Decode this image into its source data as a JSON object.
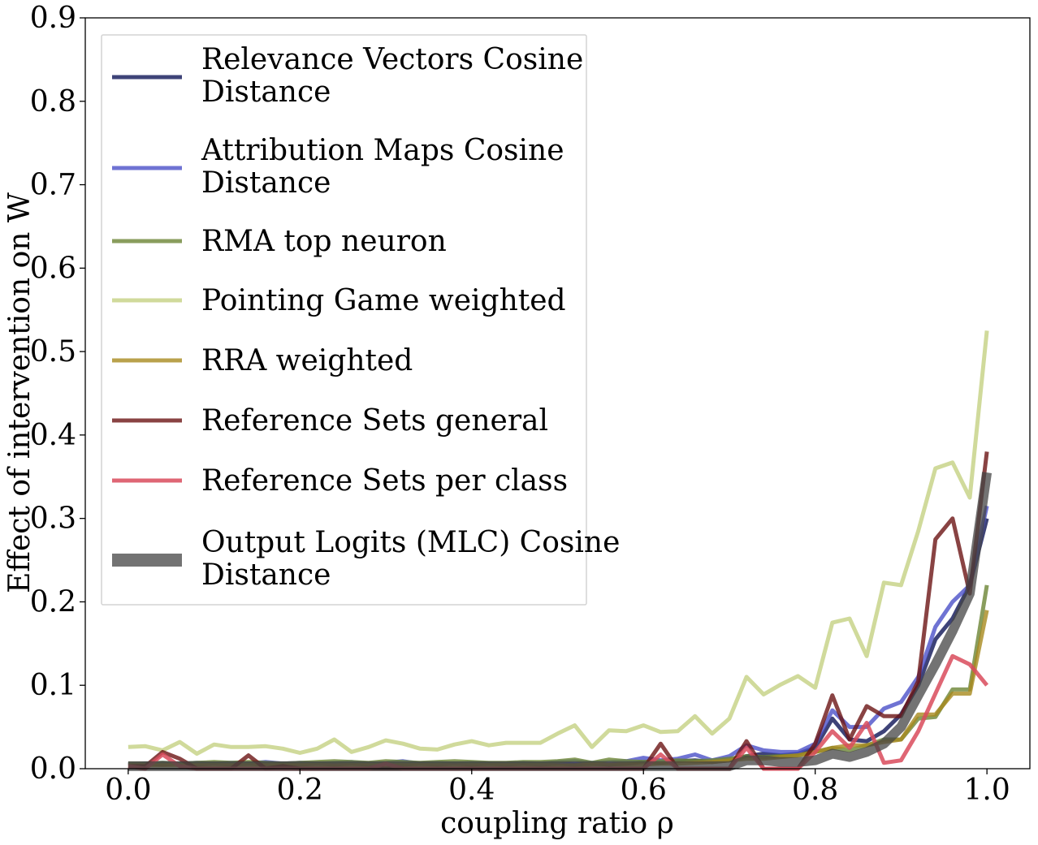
{
  "chart_data": {
    "type": "line",
    "title": "",
    "xlabel": "coupling ratio ρ",
    "ylabel": "Effect of intervention on W",
    "xlim": [
      -0.05,
      1.05
    ],
    "ylim": [
      0.0,
      0.9
    ],
    "xticks": [
      0.0,
      0.2,
      0.4,
      0.6,
      0.8,
      1.0
    ],
    "xtick_labels": [
      "0.0",
      "0.2",
      "0.4",
      "0.6",
      "0.8",
      "1.0"
    ],
    "yticks": [
      0.0,
      0.1,
      0.2,
      0.3,
      0.4,
      0.5,
      0.6,
      0.7,
      0.8,
      0.9
    ],
    "ytick_labels": [
      "0.0",
      "0.1",
      "0.2",
      "0.3",
      "0.4",
      "0.5",
      "0.6",
      "0.7",
      "0.8",
      "0.9"
    ],
    "grid": false,
    "legend_position": "upper-left",
    "x": [
      0.0,
      0.02,
      0.04,
      0.06,
      0.08,
      0.1,
      0.12,
      0.14,
      0.16,
      0.18,
      0.2,
      0.22,
      0.24,
      0.26,
      0.28,
      0.3,
      0.32,
      0.34,
      0.36,
      0.38,
      0.4,
      0.42,
      0.44,
      0.46,
      0.48,
      0.5,
      0.52,
      0.54,
      0.56,
      0.58,
      0.6,
      0.62,
      0.64,
      0.66,
      0.68,
      0.7,
      0.72,
      0.74,
      0.76,
      0.78,
      0.8,
      0.82,
      0.84,
      0.86,
      0.88,
      0.9,
      0.92,
      0.94,
      0.96,
      0.98,
      1.0
    ],
    "series": [
      {
        "name": "Relevance Vectors Cosine Distance",
        "color": "#1c2260",
        "values": [
          0.005,
          0.006,
          0.005,
          0.006,
          0.005,
          0.006,
          0.005,
          0.006,
          0.005,
          0.006,
          0.005,
          0.006,
          0.005,
          0.006,
          0.005,
          0.006,
          0.005,
          0.006,
          0.005,
          0.006,
          0.005,
          0.006,
          0.005,
          0.006,
          0.005,
          0.006,
          0.005,
          0.006,
          0.005,
          0.006,
          0.008,
          0.007,
          0.009,
          0.01,
          0.008,
          0.01,
          0.015,
          0.018,
          0.016,
          0.018,
          0.025,
          0.06,
          0.035,
          0.033,
          0.045,
          0.065,
          0.1,
          0.155,
          0.18,
          0.22,
          0.3
        ]
      },
      {
        "name": "Attribution Maps Cosine Distance",
        "color": "#4b50c8",
        "values": [
          0.005,
          0.006,
          0.007,
          0.006,
          0.007,
          0.006,
          0.007,
          0.006,
          0.008,
          0.006,
          0.007,
          0.006,
          0.007,
          0.008,
          0.006,
          0.007,
          0.009,
          0.006,
          0.007,
          0.006,
          0.007,
          0.006,
          0.006,
          0.007,
          0.006,
          0.008,
          0.009,
          0.007,
          0.008,
          0.009,
          0.013,
          0.01,
          0.012,
          0.017,
          0.01,
          0.015,
          0.028,
          0.022,
          0.02,
          0.02,
          0.03,
          0.07,
          0.05,
          0.05,
          0.072,
          0.08,
          0.11,
          0.17,
          0.2,
          0.22,
          0.315
        ]
      },
      {
        "name": "RMA top neuron",
        "color": "#6b8535",
        "values": [
          0.006,
          0.006,
          0.007,
          0.006,
          0.007,
          0.008,
          0.007,
          0.008,
          0.007,
          0.006,
          0.007,
          0.008,
          0.009,
          0.008,
          0.007,
          0.009,
          0.008,
          0.007,
          0.008,
          0.009,
          0.008,
          0.007,
          0.007,
          0.008,
          0.008,
          0.009,
          0.011,
          0.007,
          0.011,
          0.009,
          0.008,
          0.009,
          0.01,
          0.009,
          0.01,
          0.012,
          0.015,
          0.014,
          0.015,
          0.016,
          0.02,
          0.025,
          0.022,
          0.028,
          0.035,
          0.035,
          0.06,
          0.062,
          0.095,
          0.095,
          0.22
        ]
      },
      {
        "name": "Pointing Game weighted",
        "color": "#c4d182",
        "values": [
          0.026,
          0.027,
          0.022,
          0.032,
          0.018,
          0.029,
          0.026,
          0.026,
          0.027,
          0.024,
          0.019,
          0.024,
          0.035,
          0.02,
          0.026,
          0.034,
          0.03,
          0.024,
          0.023,
          0.029,
          0.033,
          0.028,
          0.031,
          0.031,
          0.031,
          0.042,
          0.052,
          0.026,
          0.046,
          0.045,
          0.052,
          0.044,
          0.045,
          0.063,
          0.042,
          0.06,
          0.11,
          0.089,
          0.101,
          0.111,
          0.097,
          0.175,
          0.18,
          0.135,
          0.223,
          0.22,
          0.285,
          0.36,
          0.367,
          0.325,
          0.525
        ]
      },
      {
        "name": "RRA weighted",
        "color": "#a88a1e",
        "values": [
          0.004,
          0.004,
          0.004,
          0.004,
          0.004,
          0.004,
          0.004,
          0.004,
          0.004,
          0.004,
          0.004,
          0.004,
          0.004,
          0.004,
          0.004,
          0.004,
          0.004,
          0.004,
          0.004,
          0.004,
          0.004,
          0.004,
          0.004,
          0.004,
          0.004,
          0.004,
          0.004,
          0.005,
          0.005,
          0.005,
          0.005,
          0.006,
          0.006,
          0.007,
          0.008,
          0.01,
          0.012,
          0.012,
          0.014,
          0.016,
          0.02,
          0.025,
          0.028,
          0.028,
          0.032,
          0.035,
          0.065,
          0.065,
          0.09,
          0.09,
          0.19
        ]
      },
      {
        "name": "Reference Sets general",
        "color": "#6b1414",
        "values": [
          0.003,
          0.003,
          0.02,
          0.012,
          0.0,
          0.0,
          0.0,
          0.016,
          0.0,
          0.003,
          0.0,
          0.0,
          0.0,
          0.0,
          0.0,
          0.0,
          0.0,
          0.0,
          0.0,
          0.0,
          0.0,
          0.0,
          0.0,
          0.0,
          0.0,
          0.0,
          0.0,
          0.0,
          0.0,
          0.0,
          0.0,
          0.03,
          0.0,
          0.0,
          0.0,
          0.0,
          0.033,
          0.0,
          0.0,
          0.0,
          0.03,
          0.088,
          0.035,
          0.075,
          0.063,
          0.063,
          0.105,
          0.275,
          0.3,
          0.21,
          0.38
        ]
      },
      {
        "name": "Reference Sets per class",
        "color": "#d94b5c",
        "values": [
          0.003,
          0.0,
          0.017,
          0.003,
          0.0,
          0.0,
          0.0,
          0.0,
          0.0,
          0.0,
          0.0,
          0.0,
          0.0,
          0.0,
          0.0,
          0.006,
          0.0,
          0.0,
          0.0,
          0.0,
          0.0,
          0.0,
          0.0,
          0.0,
          0.0,
          0.0,
          0.0,
          0.0,
          0.0,
          0.0,
          0.0,
          0.017,
          0.0,
          0.0,
          0.0,
          0.0,
          0.025,
          0.0,
          0.0,
          0.0,
          0.02,
          0.045,
          0.025,
          0.055,
          0.007,
          0.01,
          0.045,
          0.09,
          0.135,
          0.125,
          0.1
        ]
      },
      {
        "name": "Output Logits (MLC) Cosine Distance",
        "color": "#444444",
        "values": [
          0.003,
          0.003,
          0.003,
          0.003,
          0.003,
          0.003,
          0.003,
          0.003,
          0.003,
          0.003,
          0.003,
          0.003,
          0.003,
          0.003,
          0.003,
          0.003,
          0.003,
          0.003,
          0.003,
          0.003,
          0.003,
          0.003,
          0.003,
          0.003,
          0.003,
          0.003,
          0.003,
          0.003,
          0.003,
          0.003,
          0.003,
          0.003,
          0.003,
          0.003,
          0.003,
          0.003,
          0.01,
          0.01,
          0.008,
          0.008,
          0.01,
          0.018,
          0.014,
          0.02,
          0.03,
          0.05,
          0.088,
          0.125,
          0.165,
          0.21,
          0.355
        ]
      }
    ]
  }
}
